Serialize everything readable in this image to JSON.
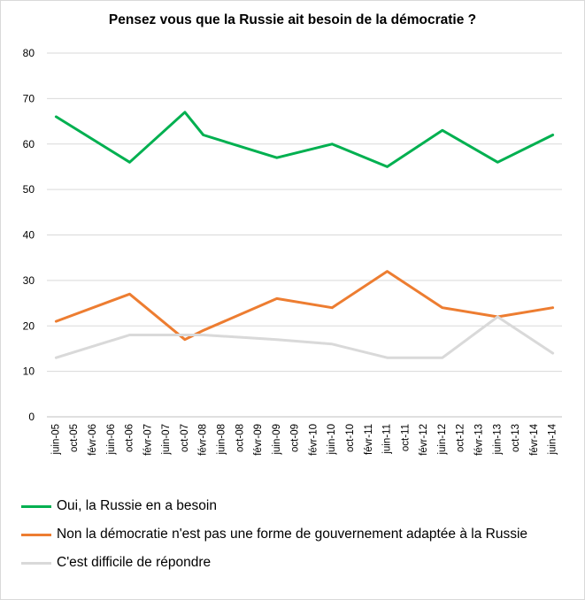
{
  "chart_data": {
    "type": "line",
    "title": "Pensez vous que la Russie ait besoin de la démocratie ?",
    "xlabel": "",
    "ylabel": "",
    "ylim": [
      0,
      80
    ],
    "yticks": [
      0,
      10,
      20,
      30,
      40,
      50,
      60,
      70,
      80
    ],
    "grid": true,
    "legend_position": "bottom",
    "categories": [
      "juin-05",
      "oct-05",
      "févr-06",
      "juin-06",
      "oct-06",
      "févr-07",
      "juin-07",
      "oct-07",
      "févr-08",
      "juin-08",
      "oct-08",
      "févr-09",
      "juin-09",
      "oct-09",
      "févr-10",
      "juin-10",
      "oct-10",
      "févr-11",
      "juin-11",
      "oct-11",
      "févr-12",
      "juin-12",
      "oct-12",
      "févr-13",
      "juin-13",
      "oct-13",
      "févr-14",
      "juin-14"
    ],
    "series": [
      {
        "name": "Oui, la Russie en a besoin",
        "color": "#00b050",
        "points": [
          {
            "x": "juin-05",
            "y": 66
          },
          {
            "x": "oct-06",
            "y": 56
          },
          {
            "x": "oct-07",
            "y": 67
          },
          {
            "x": "févr-08",
            "y": 62
          },
          {
            "x": "juin-09",
            "y": 57
          },
          {
            "x": "juin-10",
            "y": 60
          },
          {
            "x": "juin-11",
            "y": 55
          },
          {
            "x": "juin-12",
            "y": 63
          },
          {
            "x": "juin-13",
            "y": 56
          },
          {
            "x": "juin-14",
            "y": 62
          }
        ]
      },
      {
        "name": "Non la démocratie n'est pas une forme de gouvernement adaptée à la Russie",
        "color": "#ed7d31",
        "points": [
          {
            "x": "juin-05",
            "y": 21
          },
          {
            "x": "oct-06",
            "y": 27
          },
          {
            "x": "oct-07",
            "y": 17
          },
          {
            "x": "févr-08",
            "y": 19
          },
          {
            "x": "juin-09",
            "y": 26
          },
          {
            "x": "juin-10",
            "y": 24
          },
          {
            "x": "juin-11",
            "y": 32
          },
          {
            "x": "juin-12",
            "y": 24
          },
          {
            "x": "juin-13",
            "y": 22
          },
          {
            "x": "juin-14",
            "y": 24
          }
        ]
      },
      {
        "name": "C'est difficile de répondre",
        "color": "#d9d9d9",
        "points": [
          {
            "x": "juin-05",
            "y": 13
          },
          {
            "x": "oct-06",
            "y": 18
          },
          {
            "x": "oct-07",
            "y": 18
          },
          {
            "x": "févr-08",
            "y": 18
          },
          {
            "x": "juin-09",
            "y": 17
          },
          {
            "x": "juin-10",
            "y": 16
          },
          {
            "x": "juin-11",
            "y": 13
          },
          {
            "x": "juin-12",
            "y": 13
          },
          {
            "x": "juin-13",
            "y": 22
          },
          {
            "x": "juin-14",
            "y": 14
          }
        ]
      }
    ]
  }
}
